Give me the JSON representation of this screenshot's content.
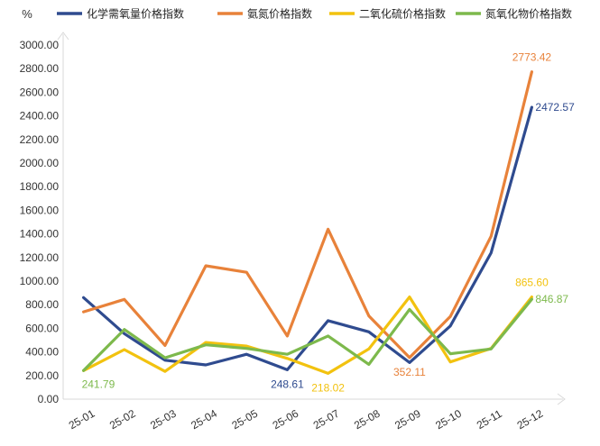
{
  "chart_data": {
    "type": "line",
    "ylabel": "%",
    "ylim": [
      0,
      3000
    ],
    "yticks": [
      "0.00",
      "200.00",
      "400.00",
      "600.00",
      "800.00",
      "1000.00",
      "1200.00",
      "1400.00",
      "1600.00",
      "1800.00",
      "2000.00",
      "2200.00",
      "2400.00",
      "2600.00",
      "2800.00",
      "3000.00"
    ],
    "categories": [
      "25-01",
      "25-02",
      "25-03",
      "25-04",
      "25-05",
      "25-06",
      "25-07",
      "25-08",
      "25-09",
      "25-10",
      "25-11",
      "25-12"
    ],
    "legend_position": "top",
    "grid": false,
    "series": [
      {
        "name": "化学需氧量价格指数",
        "color": "#2F4B8F",
        "values": [
          860,
          555,
          330,
          290,
          380,
          248.61,
          665,
          570,
          310,
          620,
          1240,
          2472.57
        ]
      },
      {
        "name": "氨氮价格指数",
        "color": "#E8823A",
        "values": [
          740,
          845,
          455,
          1130,
          1075,
          535,
          1440,
          705,
          352.11,
          700,
          1380,
          2773.42
        ]
      },
      {
        "name": "二氧化硫价格指数",
        "color": "#F2C20F",
        "values": [
          241.79,
          420,
          235,
          480,
          450,
          345,
          218.02,
          425,
          865.6,
          315,
          430,
          865.6
        ]
      },
      {
        "name": "氮氧化物价格指数",
        "color": "#7DB94C",
        "values": [
          241.79,
          590,
          350,
          460,
          430,
          380,
          535,
          295,
          760,
          385,
          425,
          846.87
        ]
      }
    ],
    "data_labels": [
      {
        "series": 0,
        "index": 5,
        "text": "248.61",
        "position": "below"
      },
      {
        "series": 0,
        "index": 11,
        "text": "2472.57",
        "position": "right"
      },
      {
        "series": 1,
        "index": 8,
        "text": "352.11",
        "position": "below"
      },
      {
        "series": 1,
        "index": 11,
        "text": "2773.42",
        "position": "above"
      },
      {
        "series": 2,
        "index": 6,
        "text": "218.02",
        "position": "below"
      },
      {
        "series": 2,
        "index": 11,
        "text": "865.60",
        "position": "above"
      },
      {
        "series": 3,
        "index": 0,
        "text": "241.79",
        "position": "below-right"
      },
      {
        "series": 3,
        "index": 11,
        "text": "846.87",
        "position": "right"
      }
    ]
  }
}
